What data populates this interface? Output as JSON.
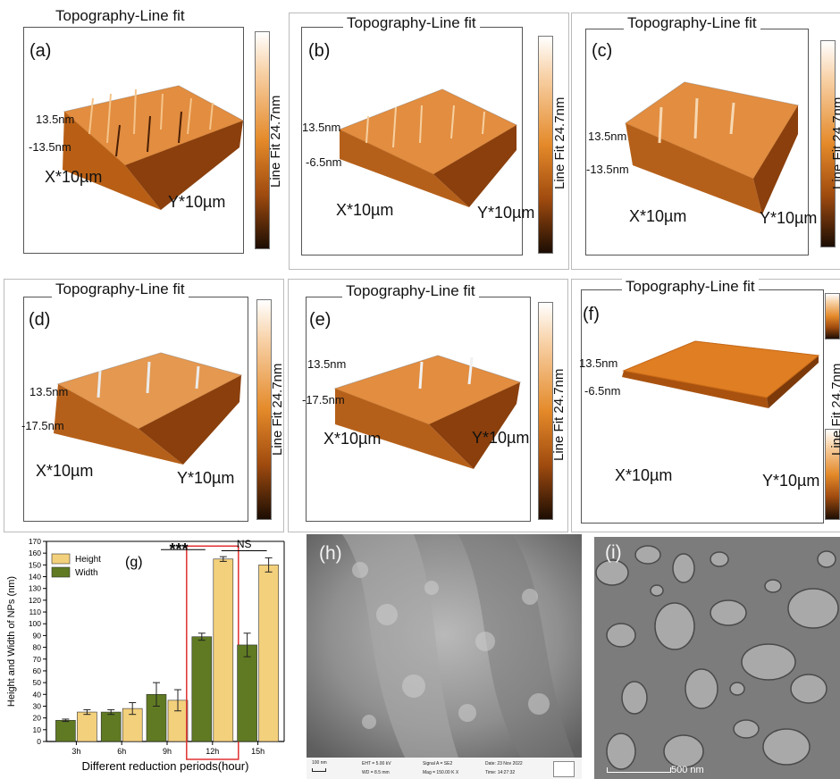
{
  "topo_title": "Topography-Line fit",
  "colorbar_label": "Line Fit 24.7nm",
  "x_axis": "X*10µm",
  "y_axis": "Y*10µm",
  "panels": [
    {
      "label": "(a)",
      "z_top": "13.5nm",
      "z_bottom": "-13.5nm"
    },
    {
      "label": "(b)",
      "z_top": "13.5nm",
      "z_bottom": "-6.5nm"
    },
    {
      "label": "(c)",
      "z_top": "13.5nm",
      "z_bottom": "-13.5nm"
    },
    {
      "label": "(d)",
      "z_top": "13.5nm",
      "z_bottom": "-17.5nm"
    },
    {
      "label": "(e)",
      "z_top": "13.5nm",
      "z_bottom": "-17.5nm"
    },
    {
      "label": "(f)",
      "z_top": "13.5nm",
      "z_bottom": "-6.5nm"
    }
  ],
  "sem_h": {
    "label": "(h)",
    "scale": "100 nm",
    "eht": "EHT = 5.00 kV",
    "wd": "WD = 8.5 mm",
    "signal": "Signal A = SE2",
    "mag": "Mag = 150.00 K X",
    "date": "Date: 23 Nov 2022",
    "time": "Time: 14:27:32",
    "logo": "ZEISS"
  },
  "sem_i": {
    "label": "(i)",
    "scale": "500 nm"
  },
  "colors": {
    "height": "#f3d07c",
    "width": "#5f7a22",
    "orange": "#e0821f",
    "highlight": "#e03030"
  },
  "chart_data": {
    "type": "bar",
    "panel_label": "(g)",
    "categories": [
      "3h",
      "6h",
      "9h",
      "12h",
      "15h"
    ],
    "series": [
      {
        "name": "Width",
        "values": [
          18,
          25,
          40,
          89,
          82
        ],
        "errors": [
          1,
          2,
          10,
          3,
          10
        ]
      },
      {
        "name": "Height",
        "values": [
          25,
          28,
          35,
          155,
          150
        ],
        "errors": [
          2,
          5,
          9,
          2,
          6
        ]
      }
    ],
    "xlabel": "Different reduction periods(hour)",
    "ylabel": "Height and Width of NPs (nm)",
    "ylim": [
      0,
      170
    ],
    "yticks": [
      0,
      10,
      20,
      30,
      40,
      50,
      60,
      70,
      80,
      90,
      100,
      110,
      120,
      130,
      140,
      150,
      160,
      170
    ],
    "legend_position": "top-left",
    "annotations": [
      {
        "text": "***"
      },
      {
        "text": "NS"
      }
    ],
    "highlight_category": "12h"
  }
}
